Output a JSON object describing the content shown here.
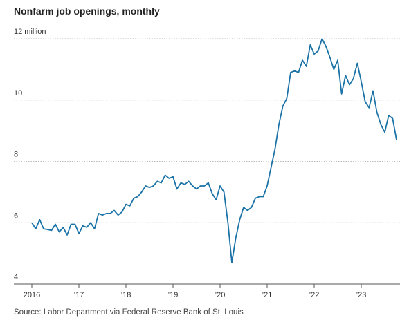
{
  "chart_data": {
    "type": "line",
    "title": "Nonfarm job openings, monthly",
    "source": "Source: Labor Department via Federal Reserve Bank of St. Louis",
    "x": [
      2016,
      2016.083,
      2016.167,
      2016.25,
      2016.333,
      2016.417,
      2016.5,
      2016.583,
      2016.667,
      2016.75,
      2016.833,
      2016.917,
      2017,
      2017.083,
      2017.167,
      2017.25,
      2017.333,
      2017.417,
      2017.5,
      2017.583,
      2017.667,
      2017.75,
      2017.833,
      2017.917,
      2018,
      2018.083,
      2018.167,
      2018.25,
      2018.333,
      2018.417,
      2018.5,
      2018.583,
      2018.667,
      2018.75,
      2018.833,
      2018.917,
      2019,
      2019.083,
      2019.167,
      2019.25,
      2019.333,
      2019.417,
      2019.5,
      2019.583,
      2019.667,
      2019.75,
      2019.833,
      2019.917,
      2020,
      2020.083,
      2020.167,
      2020.25,
      2020.333,
      2020.417,
      2020.5,
      2020.583,
      2020.667,
      2020.75,
      2020.833,
      2020.917,
      2021,
      2021.083,
      2021.167,
      2021.25,
      2021.333,
      2021.417,
      2021.5,
      2021.583,
      2021.667,
      2021.75,
      2021.833,
      2021.917,
      2022,
      2022.083,
      2022.167,
      2022.25,
      2022.333,
      2022.417,
      2022.5,
      2022.583,
      2022.667,
      2022.75,
      2022.833,
      2022.917,
      2023,
      2023.083,
      2023.167,
      2023.25,
      2023.333,
      2023.417,
      2023.5,
      2023.583,
      2023.667,
      2023.75
    ],
    "series": [
      {
        "color": "#1a72a6",
        "values": [
          6.0,
          5.8,
          6.1,
          5.8,
          5.78,
          5.75,
          5.95,
          5.7,
          5.85,
          5.6,
          5.95,
          5.95,
          5.65,
          5.9,
          5.85,
          6.0,
          5.8,
          6.3,
          6.25,
          6.3,
          6.3,
          6.4,
          6.25,
          6.35,
          6.6,
          6.55,
          6.8,
          6.85,
          7.0,
          7.2,
          7.15,
          7.2,
          7.35,
          7.3,
          7.55,
          7.45,
          7.5,
          7.1,
          7.3,
          7.25,
          7.35,
          7.2,
          7.1,
          7.2,
          7.2,
          7.3,
          6.95,
          6.75,
          7.2,
          7.0,
          6.0,
          4.7,
          5.5,
          6.1,
          6.5,
          6.4,
          6.5,
          6.8,
          6.85,
          6.85,
          7.2,
          7.8,
          8.4,
          9.2,
          9.8,
          10.05,
          10.9,
          10.95,
          10.9,
          11.3,
          11.1,
          11.8,
          11.5,
          11.6,
          12.0,
          11.75,
          11.4,
          11.0,
          11.3,
          10.2,
          10.8,
          10.5,
          10.7,
          11.2,
          10.6,
          9.95,
          9.75,
          10.3,
          9.6,
          9.2,
          8.95,
          9.5,
          9.4,
          8.7
        ]
      }
    ],
    "xlim": [
      2016,
      2023.75
    ],
    "xticks": [
      {
        "value": 2016,
        "label": "2016"
      },
      {
        "value": 2017,
        "label": "’17"
      },
      {
        "value": 2018,
        "label": "’18"
      },
      {
        "value": 2019,
        "label": "’19"
      },
      {
        "value": 2020,
        "label": "’20"
      },
      {
        "value": 2021,
        "label": "’21"
      },
      {
        "value": 2022,
        "label": "’22"
      },
      {
        "value": 2023,
        "label": "’23"
      }
    ],
    "ylim": [
      4,
      12
    ],
    "yticks": [
      4,
      6,
      8,
      10,
      {
        "value": 12,
        "label": "12 million"
      }
    ],
    "grid": true
  }
}
